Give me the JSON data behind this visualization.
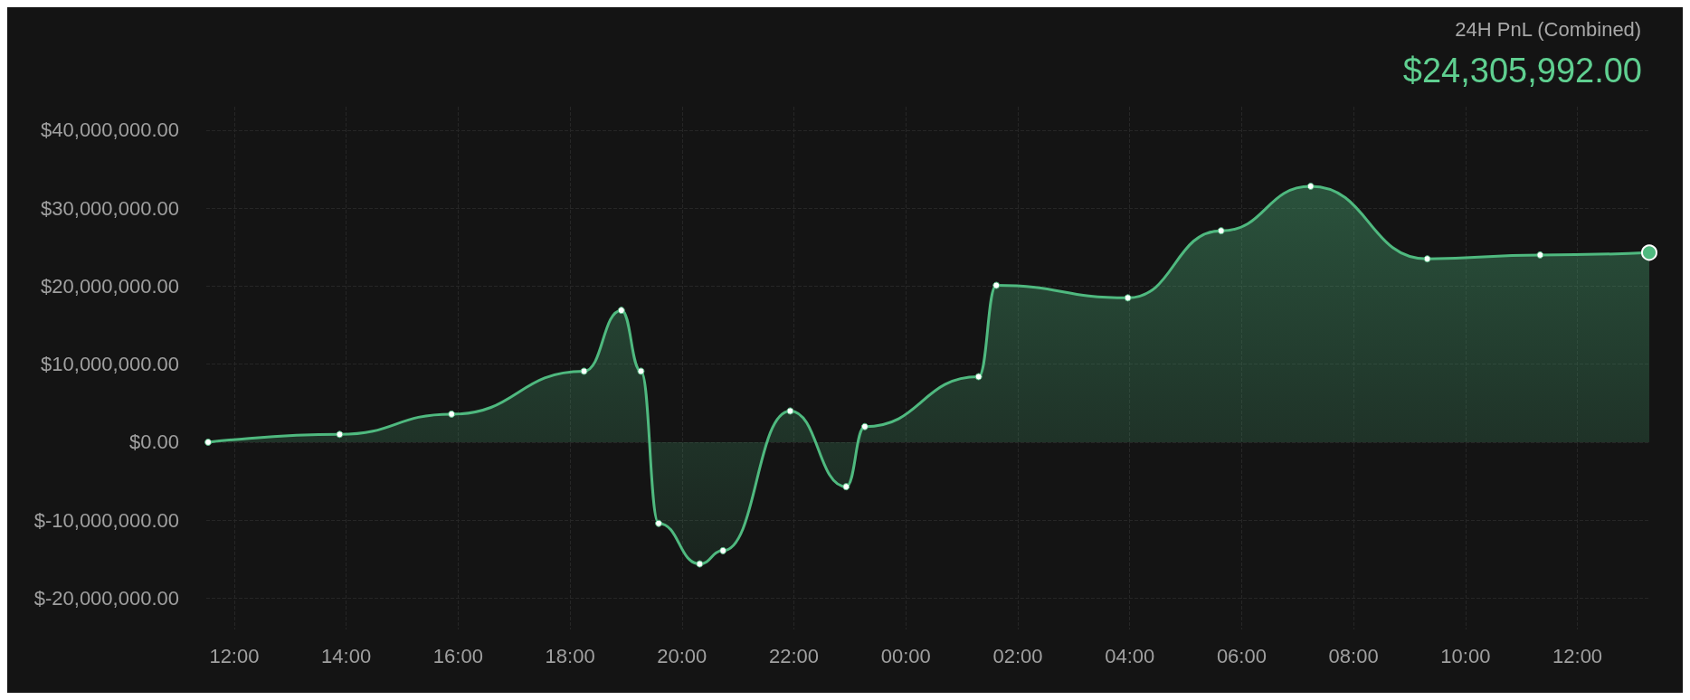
{
  "chart_data": {
    "type": "area",
    "title": "24H PnL (Combined)",
    "subtitle": "$24,305,992.00",
    "x": [
      "--01-01T11:32",
      "--01-01T13:53",
      "--01-01T15:53",
      "--01-01T18:15",
      "--01-01T18:55",
      "--01-01T19:16",
      "--01-01T19:35",
      "--01-01T20:19",
      "--01-01T20:44",
      "--01-01T21:56",
      "--01-01T22:56",
      "--01-01T23:16",
      "--01-02T01:18",
      "--01-02T01:37",
      "--01-02T03:58",
      "--01-02T05:38",
      "--01-02T07:14",
      "--01-02T09:19",
      "--01-02T11:20",
      "--01-02T13:17"
    ],
    "series": [
      {
        "color": "#4fb97f",
        "values": [
          0,
          1000000,
          3600000,
          9100000,
          16900000,
          9100000,
          -10400000,
          -15600000,
          -13900000,
          4000000,
          -5700000,
          2000000,
          8400000,
          20100000,
          18500000,
          27100000,
          32800000,
          23500000,
          24000000,
          24300000
        ]
      }
    ],
    "xlim": [
      "--01-01T11:30",
      "--01-02T13:18"
    ],
    "xticks": [
      {
        "value": "--01-01T12:00",
        "label": "12:00"
      },
      {
        "value": "--01-01T14:00",
        "label": "14:00"
      },
      {
        "value": "--01-01T16:00",
        "label": "16:00"
      },
      {
        "value": "--01-01T18:00",
        "label": "18:00"
      },
      {
        "value": "--01-01T20:00",
        "label": "20:00"
      },
      {
        "value": "--01-01T22:00",
        "label": "22:00"
      },
      {
        "value": "--01-02T00:00",
        "label": "00:00"
      },
      {
        "value": "--01-02T02:00",
        "label": "02:00"
      },
      {
        "value": "--01-02T04:00",
        "label": "04:00"
      },
      {
        "value": "--01-02T06:00",
        "label": "06:00"
      },
      {
        "value": "--01-02T08:00",
        "label": "08:00"
      },
      {
        "value": "--01-02T10:00",
        "label": "10:00"
      },
      {
        "value": "--01-02T12:00",
        "label": "12:00"
      }
    ],
    "ylim": [
      -24000000,
      43000000
    ],
    "yticks": [
      {
        "value": -20000000,
        "label": "$-20,000,000.00"
      },
      {
        "value": -10000000,
        "label": "$-10,000,000.00"
      },
      {
        "value": 0,
        "label": "$0.00"
      },
      {
        "value": 10000000,
        "label": "$10,000,000.00"
      },
      {
        "value": 20000000,
        "label": "$20,000,000.00"
      },
      {
        "value": 30000000,
        "label": "$30,000,000.00"
      },
      {
        "value": 40000000,
        "label": "$40,000,000.00"
      }
    ],
    "grid": true,
    "line_style": "solid",
    "marker": "circle"
  }
}
